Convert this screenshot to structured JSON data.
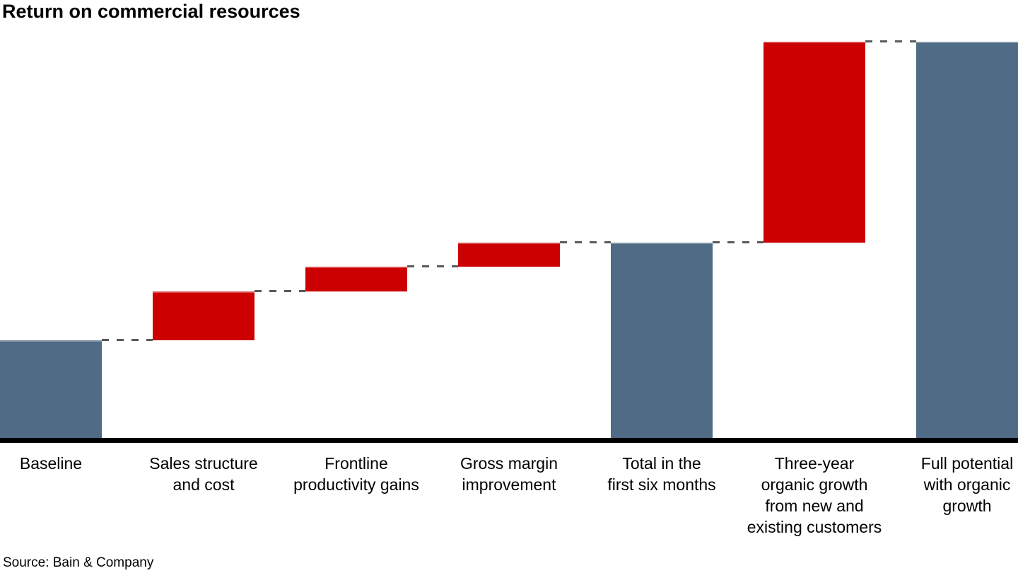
{
  "title": "Return on commercial resources",
  "source": "Source: Bain & Company",
  "colors": {
    "background": "#FFFFFF",
    "total_bar": "#4F6B85",
    "change_bar": "#CC0000",
    "axis": "#000000",
    "connector": "#595959",
    "text": "#000000"
  },
  "chart_data": {
    "type": "bar",
    "subtype": "waterfall",
    "title": "Return on commercial resources",
    "xlabel": "",
    "ylabel": "",
    "value_axis_visible": false,
    "value_labels_shown": false,
    "grid": false,
    "legend": false,
    "ylim": [
      0,
      405
    ],
    "categories": [
      "Baseline",
      "Sales structure\nand cost",
      "Frontline\nproductivity gains",
      "Gross margin\nimprovement",
      "Total in the\nfirst six months",
      "Three-year\norganic growth\nfrom new and\nexisting customers",
      "Full potential\nwith organic\ngrowth"
    ],
    "bars": [
      {
        "label": "Baseline",
        "start": 0,
        "end": 100,
        "role": "total"
      },
      {
        "label": "Sales structure\nand cost",
        "start": 100,
        "end": 150,
        "role": "increase"
      },
      {
        "label": "Frontline\nproductivity gains",
        "start": 150,
        "end": 175,
        "role": "increase"
      },
      {
        "label": "Gross margin\nimprovement",
        "start": 175,
        "end": 200,
        "role": "increase"
      },
      {
        "label": "Total in the\nfirst six months",
        "start": 0,
        "end": 200,
        "role": "total"
      },
      {
        "label": "Three-year\norganic growth\nfrom new and\nexisting customers",
        "start": 200,
        "end": 405,
        "role": "increase"
      },
      {
        "label": "Full potential\nwith organic\ngrowth",
        "start": 0,
        "end": 405,
        "role": "total"
      }
    ]
  }
}
